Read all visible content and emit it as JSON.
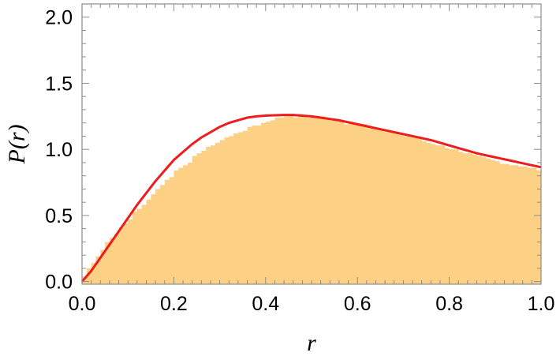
{
  "chart_data": {
    "type": "histogram_with_curve",
    "xlabel": "r",
    "ylabel": "P(r)",
    "xlim": [
      0.0,
      1.0
    ],
    "ylim": [
      -0.02,
      2.1
    ],
    "x_ticks": [
      "0.0",
      "0.2",
      "0.4",
      "0.6",
      "0.8",
      "1.0"
    ],
    "y_ticks": [
      "0.0",
      "0.5",
      "1.0",
      "1.5",
      "2.0"
    ],
    "colors": {
      "histogram": "#fdd185",
      "curve": "#ee1c1c",
      "frame": "#8c8c8c"
    },
    "histogram": {
      "bin_width": 0.01,
      "heights": [
        0.04,
        0.1,
        0.14,
        0.19,
        0.24,
        0.3,
        0.33,
        0.36,
        0.41,
        0.44,
        0.47,
        0.53,
        0.55,
        0.58,
        0.62,
        0.66,
        0.7,
        0.73,
        0.77,
        0.79,
        0.84,
        0.86,
        0.88,
        0.9,
        0.95,
        0.97,
        0.99,
        1.02,
        1.03,
        1.05,
        1.07,
        1.09,
        1.1,
        1.12,
        1.13,
        1.14,
        1.17,
        1.18,
        1.18,
        1.2,
        1.21,
        1.22,
        1.24,
        1.24,
        1.25,
        1.26,
        1.24,
        1.25,
        1.25,
        1.24,
        1.24,
        1.24,
        1.25,
        1.23,
        1.22,
        1.23,
        1.22,
        1.19,
        1.21,
        1.2,
        1.19,
        1.19,
        1.18,
        1.16,
        1.16,
        1.15,
        1.13,
        1.14,
        1.12,
        1.11,
        1.1,
        1.1,
        1.09,
        1.08,
        1.06,
        1.05,
        1.04,
        1.03,
        1.03,
        1.01,
        1.0,
        1.0,
        0.98,
        0.97,
        0.97,
        0.96,
        0.95,
        0.94,
        0.93,
        0.92,
        0.91,
        0.89,
        0.89,
        0.88,
        0.88,
        0.87,
        0.87,
        0.86,
        0.86,
        0.84
      ]
    },
    "curve": {
      "name": "",
      "x": [
        0.0,
        0.02,
        0.04,
        0.06,
        0.08,
        0.1,
        0.12,
        0.14,
        0.16,
        0.18,
        0.2,
        0.22,
        0.24,
        0.26,
        0.28,
        0.3,
        0.32,
        0.34,
        0.36,
        0.38,
        0.4,
        0.42,
        0.44,
        0.46,
        0.48,
        0.5,
        0.52,
        0.54,
        0.56,
        0.58,
        0.6,
        0.62,
        0.64,
        0.66,
        0.68,
        0.7,
        0.72,
        0.74,
        0.76,
        0.78,
        0.8,
        0.82,
        0.84,
        0.86,
        0.88,
        0.9,
        0.92,
        0.94,
        0.96,
        0.98,
        1.0
      ],
      "y": [
        0.0,
        0.08,
        0.18,
        0.28,
        0.38,
        0.48,
        0.58,
        0.67,
        0.76,
        0.84,
        0.92,
        0.98,
        1.04,
        1.09,
        1.13,
        1.17,
        1.2,
        1.22,
        1.24,
        1.25,
        1.255,
        1.258,
        1.26,
        1.26,
        1.255,
        1.25,
        1.24,
        1.23,
        1.22,
        1.205,
        1.19,
        1.175,
        1.16,
        1.145,
        1.13,
        1.115,
        1.1,
        1.085,
        1.07,
        1.05,
        1.03,
        1.01,
        0.99,
        0.97,
        0.955,
        0.94,
        0.925,
        0.91,
        0.895,
        0.88,
        0.865
      ]
    }
  }
}
